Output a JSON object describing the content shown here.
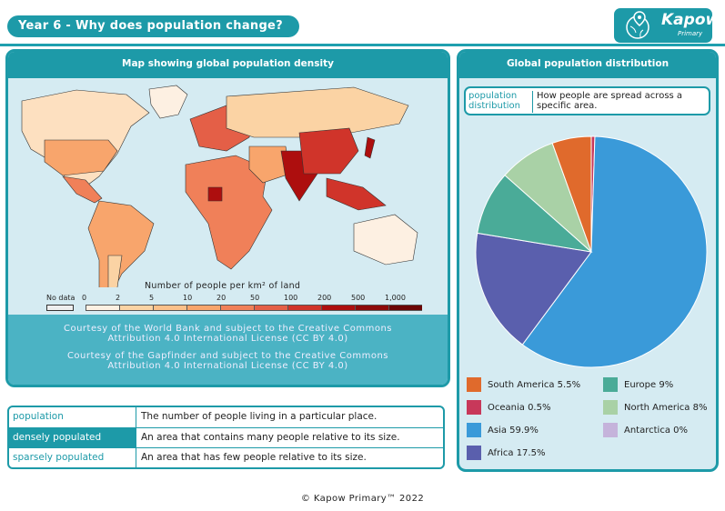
{
  "header": {
    "title": "Year 6 - Why does population change?",
    "logo_text": "Kapow",
    "logo_sub": "Primary"
  },
  "map_panel": {
    "title": "Map showing global population density",
    "legend_title": "Number of people per km² of land",
    "no_data": "No data",
    "scale_ticks": [
      "0",
      "2",
      "5",
      "10",
      "20",
      "50",
      "100",
      "200",
      "500",
      "1,000"
    ],
    "scale_colors": [
      "#fdf0e2",
      "#fbd3a4",
      "#fbc08a",
      "#f8a56c",
      "#f08059",
      "#e45f47",
      "#d0342a",
      "#ad0e0e",
      "#8d0a0a",
      "#6b0505"
    ],
    "credits": [
      "Courtesy of the World Bank and subject to the Creative Commons Attribution 4.0 International License (CC BY 4.0)",
      "Courtesy of the Gapfinder and subject to the Creative Commons Attribution 4.0 International License (CC BY 4.0)"
    ]
  },
  "glossary": [
    {
      "term": "population",
      "definition": "The number of people living in a particular place."
    },
    {
      "term": "densely populated",
      "definition": "An area that contains many people relative to its size."
    },
    {
      "term": "sparsely populated",
      "definition": "An area that has few people relative to its size."
    }
  ],
  "chart_panel": {
    "title": "Global population distribution",
    "definition_term": "population distribution",
    "definition": "How people are spread across a specific area."
  },
  "chart_data": {
    "type": "pie",
    "title": "Global population distribution",
    "unit": "%",
    "legend": "bottom",
    "slices": [
      {
        "label": "Oceania",
        "value": 0.5,
        "legend": "Oceania 0.5%",
        "color": "#c8385a"
      },
      {
        "label": "Asia",
        "value": 59.9,
        "legend": "Asia 59.9%",
        "color": "#3a9ad9"
      },
      {
        "label": "Africa",
        "value": 17.5,
        "legend": "Africa 17.5%",
        "color": "#5a5fad"
      },
      {
        "label": "Europe",
        "value": 9,
        "legend": "Europe 9%",
        "color": "#4aab98"
      },
      {
        "label": "North America",
        "value": 8,
        "legend": "North America 8%",
        "color": "#a9d1a6"
      },
      {
        "label": "South America",
        "value": 5.5,
        "legend": "South America 5.5%",
        "color": "#e06a2c"
      },
      {
        "label": "Antarctica",
        "value": 0,
        "legend": "Antarctica 0%",
        "color": "#c5b3db"
      }
    ]
  },
  "footer": "© Kapow Primary™ 2022"
}
